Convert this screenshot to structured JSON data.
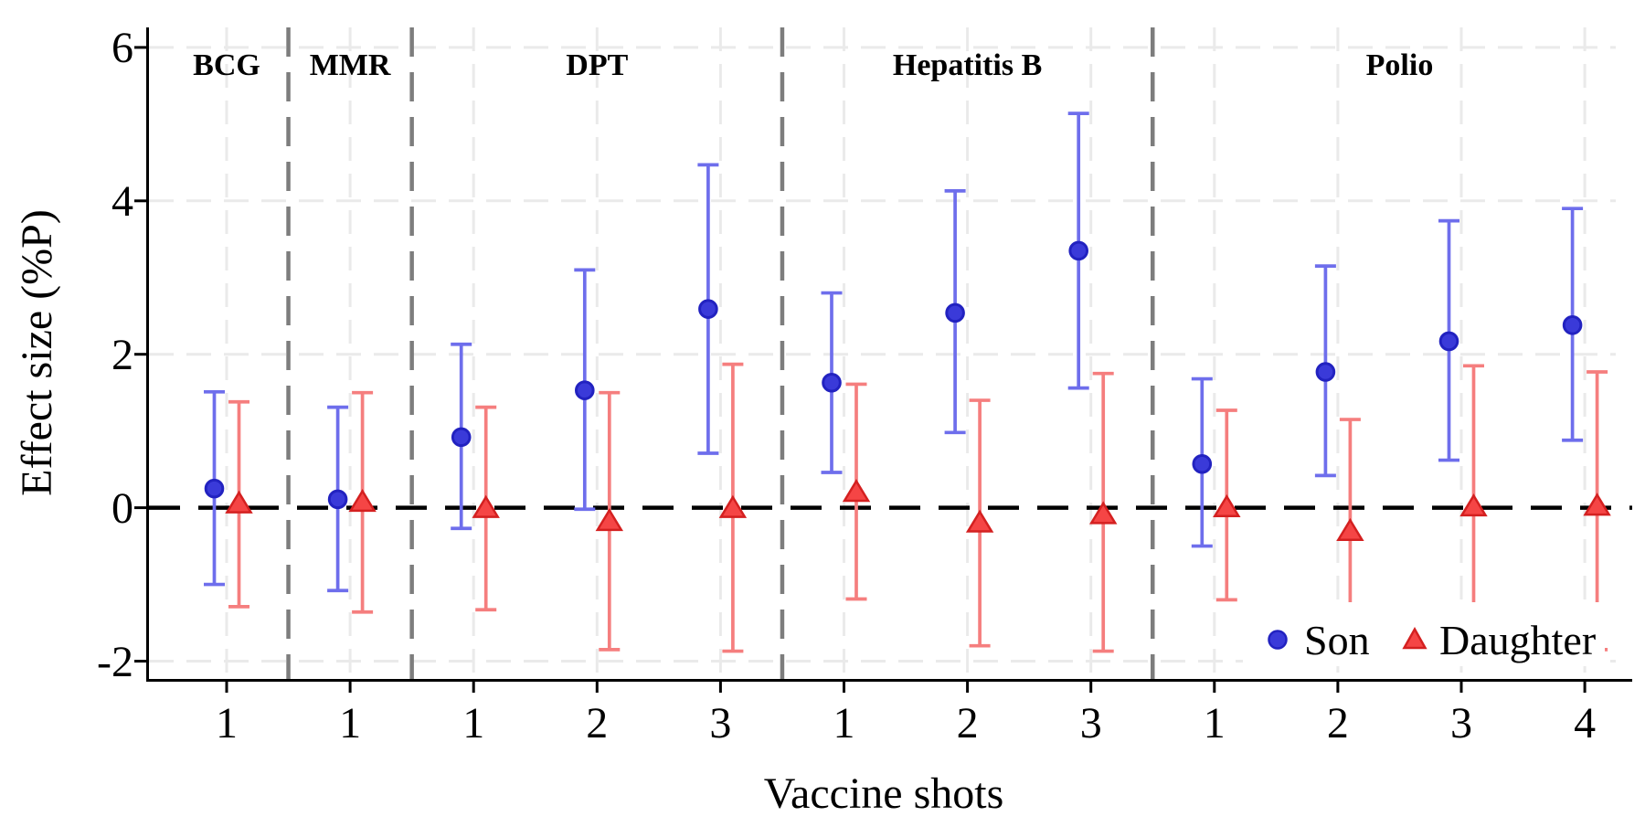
{
  "chart_data": {
    "type": "errorbar",
    "title": "",
    "xlabel": "Vaccine shots",
    "ylabel": "Effect size (%P)",
    "ylim": [
      -2.25,
      6.25
    ],
    "grid": true,
    "legend_position": "bottom-right-inside",
    "yticks": [
      {
        "value": 6,
        "label": "6"
      },
      {
        "value": 4,
        "label": "4"
      },
      {
        "value": 2,
        "label": "2"
      },
      {
        "value": 0,
        "label": "0"
      },
      {
        "value": -2,
        "label": "-2"
      }
    ],
    "zero_line": 0,
    "legend": [
      {
        "label": "Son",
        "marker": "circle"
      },
      {
        "label": "Daughter",
        "marker": "triangle"
      }
    ],
    "groups": [
      {
        "label": "BCG",
        "points": [
          {
            "shot": "1",
            "son": {
              "est": 0.25,
              "lo": -1.0,
              "hi": 1.51
            },
            "daughter": {
              "est": 0.06,
              "lo": -1.29,
              "hi": 1.38
            }
          }
        ]
      },
      {
        "label": "MMR",
        "points": [
          {
            "shot": "1",
            "son": {
              "est": 0.11,
              "lo": -1.08,
              "hi": 1.31
            },
            "daughter": {
              "est": 0.08,
              "lo": -1.36,
              "hi": 1.5
            }
          }
        ]
      },
      {
        "label": "DPT",
        "points": [
          {
            "shot": "1",
            "son": {
              "est": 0.92,
              "lo": -0.27,
              "hi": 2.13
            },
            "daughter": {
              "est": 0.0,
              "lo": -1.33,
              "hi": 1.31
            }
          },
          {
            "shot": "2",
            "son": {
              "est": 1.53,
              "lo": -0.02,
              "hi": 3.1
            },
            "daughter": {
              "est": -0.17,
              "lo": -1.85,
              "hi": 1.5
            }
          },
          {
            "shot": "3",
            "son": {
              "est": 2.59,
              "lo": 0.71,
              "hi": 4.47
            },
            "daughter": {
              "est": 0.0,
              "lo": -1.87,
              "hi": 1.87
            }
          }
        ]
      },
      {
        "label": "Hepatitis B",
        "points": [
          {
            "shot": "1",
            "son": {
              "est": 1.63,
              "lo": 0.46,
              "hi": 2.8
            },
            "daughter": {
              "est": 0.21,
              "lo": -1.19,
              "hi": 1.61
            }
          },
          {
            "shot": "2",
            "son": {
              "est": 2.54,
              "lo": 0.98,
              "hi": 4.13
            },
            "daughter": {
              "est": -0.19,
              "lo": -1.8,
              "hi": 1.4
            }
          },
          {
            "shot": "3",
            "son": {
              "est": 3.35,
              "lo": 1.56,
              "hi": 5.14
            },
            "daughter": {
              "est": -0.08,
              "lo": -1.87,
              "hi": 1.75
            }
          }
        ]
      },
      {
        "label": "Polio",
        "points": [
          {
            "shot": "1",
            "son": {
              "est": 0.57,
              "lo": -0.5,
              "hi": 1.68
            },
            "daughter": {
              "est": 0.01,
              "lo": -1.2,
              "hi": 1.27
            }
          },
          {
            "shot": "2",
            "son": {
              "est": 1.77,
              "lo": 0.42,
              "hi": 3.15
            },
            "daughter": {
              "est": -0.3,
              "lo": -1.85,
              "hi": 1.15
            }
          },
          {
            "shot": "3",
            "son": {
              "est": 2.17,
              "lo": 0.62,
              "hi": 3.74
            },
            "daughter": {
              "est": 0.02,
              "lo": -1.85,
              "hi": 1.85
            }
          },
          {
            "shot": "4",
            "son": {
              "est": 2.38,
              "lo": 0.88,
              "hi": 3.9
            },
            "daughter": {
              "est": 0.03,
              "lo": -1.85,
              "hi": 1.77
            }
          }
        ]
      }
    ]
  },
  "colors": {
    "background": "#ffffff",
    "grid": "#eaeaea",
    "separator": "#7d7d7d",
    "axis": "#000000",
    "zero_line": "#000000",
    "son_fill": "#3a3ad9",
    "son_edge": "#2222c0",
    "son_line": "#6e6eec",
    "daughter_fill": "#f54545",
    "daughter_edge": "#d42020",
    "daughter_line": "#f57e7e",
    "legend_box": "#ffffff"
  }
}
